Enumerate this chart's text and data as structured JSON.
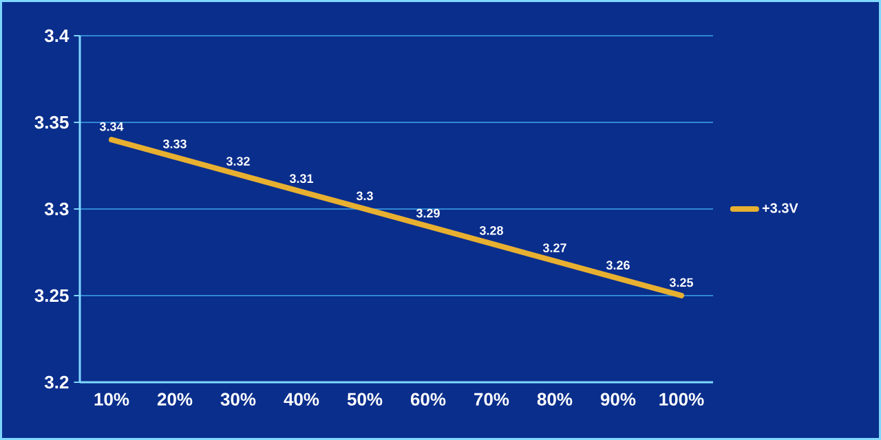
{
  "chart_data": {
    "type": "line",
    "categories": [
      "10%",
      "20%",
      "30%",
      "40%",
      "50%",
      "60%",
      "70%",
      "80%",
      "90%",
      "100%"
    ],
    "series": [
      {
        "name": "+3.3V",
        "color": "#e8b030",
        "values": [
          3.34,
          3.33,
          3.32,
          3.31,
          3.3,
          3.29,
          3.28,
          3.27,
          3.26,
          3.25
        ]
      }
    ],
    "ylim": [
      3.2,
      3.4
    ],
    "yticks": [
      3.2,
      3.25,
      3.3,
      3.35,
      3.4
    ],
    "grid": "y",
    "legend": "right",
    "marker": "none",
    "line_style": "solid",
    "data_labels": true
  }
}
